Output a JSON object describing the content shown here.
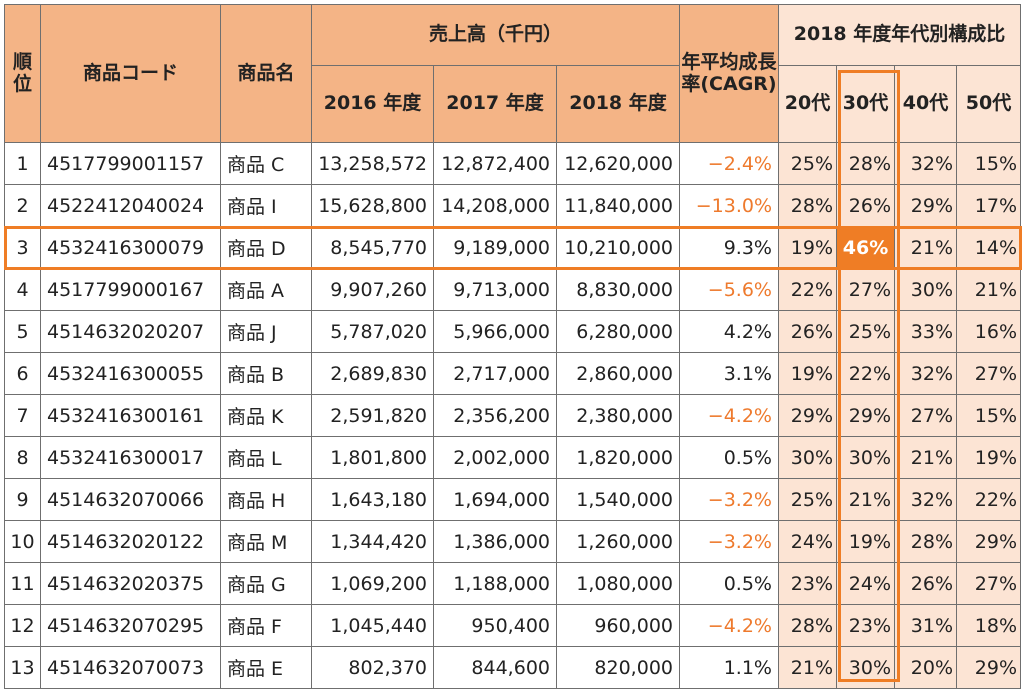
{
  "headers": {
    "rank": "順位",
    "code": "商品コード",
    "name": "商品名",
    "sales": "売上高（千円）",
    "y2016": "2016 年度",
    "y2017": "2017 年度",
    "y2018": "2018 年度",
    "cagr": "年平均成長率(CAGR)",
    "composition": "2018 年度年代別構成比",
    "age20": "20代",
    "age30": "30代",
    "age40": "40代",
    "age50": "50代"
  },
  "highlight_color": "#ef7d25",
  "header_color": "#f4b486",
  "composition_bg": "#fce4d4",
  "rows": [
    {
      "rank": "1",
      "code": "4517799001157",
      "name": "商品 C",
      "s2016": "13,258,572",
      "s2017": "12,872,400",
      "s2018": "12,620,000",
      "cagr": "−2.4%",
      "a20": "25%",
      "a30": "28%",
      "a40": "32%",
      "a50": "15%"
    },
    {
      "rank": "2",
      "code": "4522412040024",
      "name": "商品 I",
      "s2016": "15,628,800",
      "s2017": "14,208,000",
      "s2018": "11,840,000",
      "cagr": "−13.0%",
      "a20": "28%",
      "a30": "26%",
      "a40": "29%",
      "a50": "17%"
    },
    {
      "rank": "3",
      "code": "4532416300079",
      "name": "商品 D",
      "s2016": "8,545,770",
      "s2017": "9,189,000",
      "s2018": "10,210,000",
      "cagr": "9.3%",
      "a20": "19%",
      "a30": "46%",
      "a40": "21%",
      "a50": "14%"
    },
    {
      "rank": "4",
      "code": "4517799000167",
      "name": "商品 A",
      "s2016": "9,907,260",
      "s2017": "9,713,000",
      "s2018": "8,830,000",
      "cagr": "−5.6%",
      "a20": "22%",
      "a30": "27%",
      "a40": "30%",
      "a50": "21%"
    },
    {
      "rank": "5",
      "code": "4514632020207",
      "name": "商品 J",
      "s2016": "5,787,020",
      "s2017": "5,966,000",
      "s2018": "6,280,000",
      "cagr": "4.2%",
      "a20": "26%",
      "a30": "25%",
      "a40": "33%",
      "a50": "16%"
    },
    {
      "rank": "6",
      "code": "4532416300055",
      "name": "商品 B",
      "s2016": "2,689,830",
      "s2017": "2,717,000",
      "s2018": "2,860,000",
      "cagr": "3.1%",
      "a20": "19%",
      "a30": "22%",
      "a40": "32%",
      "a50": "27%"
    },
    {
      "rank": "7",
      "code": "4532416300161",
      "name": "商品 K",
      "s2016": "2,591,820",
      "s2017": "2,356,200",
      "s2018": "2,380,000",
      "cagr": "−4.2%",
      "a20": "29%",
      "a30": "29%",
      "a40": "27%",
      "a50": "15%"
    },
    {
      "rank": "8",
      "code": "4532416300017",
      "name": "商品 L",
      "s2016": "1,801,800",
      "s2017": "2,002,000",
      "s2018": "1,820,000",
      "cagr": "0.5%",
      "a20": "30%",
      "a30": "30%",
      "a40": "21%",
      "a50": "19%"
    },
    {
      "rank": "9",
      "code": "4514632070066",
      "name": "商品 H",
      "s2016": "1,643,180",
      "s2017": "1,694,000",
      "s2018": "1,540,000",
      "cagr": "−3.2%",
      "a20": "25%",
      "a30": "21%",
      "a40": "32%",
      "a50": "22%"
    },
    {
      "rank": "10",
      "code": "4514632020122",
      "name": "商品 M",
      "s2016": "1,344,420",
      "s2017": "1,386,000",
      "s2018": "1,260,000",
      "cagr": "−3.2%",
      "a20": "24%",
      "a30": "19%",
      "a40": "28%",
      "a50": "29%"
    },
    {
      "rank": "11",
      "code": "4514632020375",
      "name": "商品 G",
      "s2016": "1,069,200",
      "s2017": "1,188,000",
      "s2018": "1,080,000",
      "cagr": "0.5%",
      "a20": "23%",
      "a30": "24%",
      "a40": "26%",
      "a50": "27%"
    },
    {
      "rank": "12",
      "code": "4514632070295",
      "name": "商品 F",
      "s2016": "1,045,440",
      "s2017": "950,400",
      "s2018": "960,000",
      "cagr": "−4.2%",
      "a20": "28%",
      "a30": "23%",
      "a40": "31%",
      "a50": "18%"
    },
    {
      "rank": "13",
      "code": "4514632070073",
      "name": "商品 E",
      "s2016": "802,370",
      "s2017": "844,600",
      "s2018": "820,000",
      "cagr": "1.1%",
      "a20": "21%",
      "a30": "30%",
      "a40": "20%",
      "a50": "29%"
    }
  ],
  "highlighted_rank": "3",
  "highlighted_column": "age30"
}
